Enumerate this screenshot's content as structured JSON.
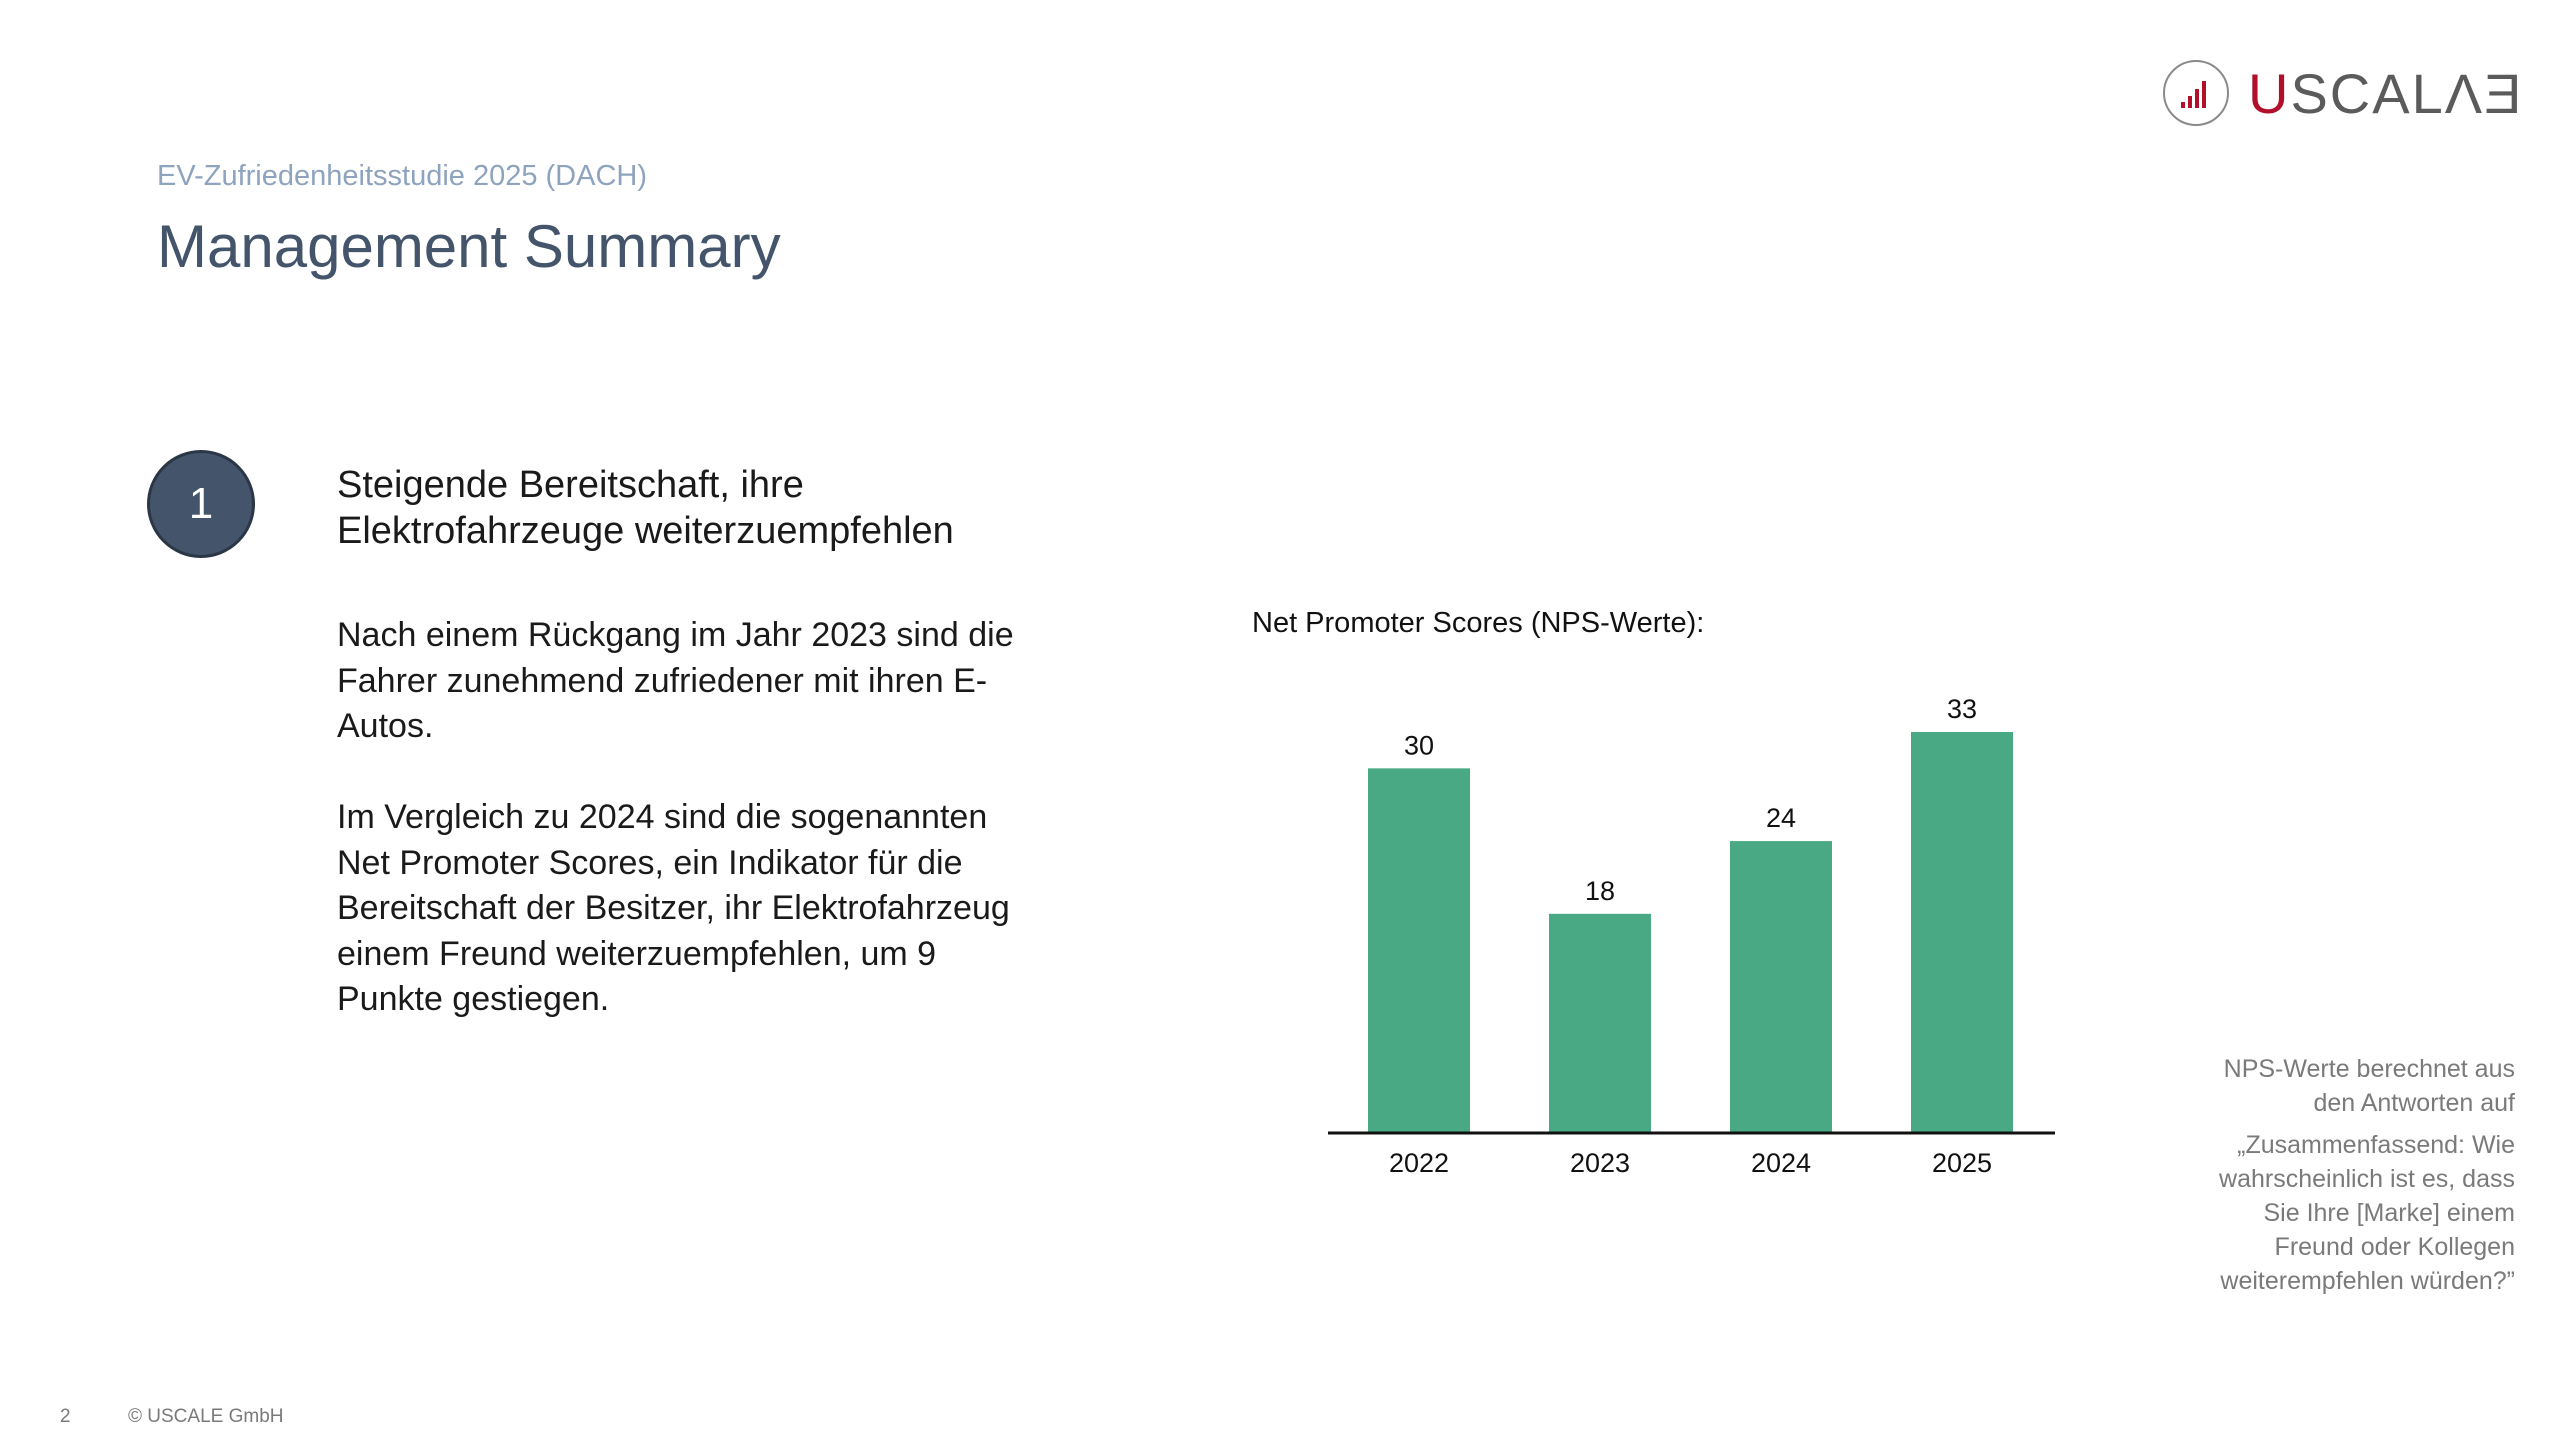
{
  "header": {
    "subtitle": "EV-Zufriedenheitsstudie 2025 (DACH)",
    "title": "Management Summary"
  },
  "logo": {
    "text_u": "U",
    "text_rest": "SCALΛƎ",
    "icon": "bar-chart-circle-icon",
    "brand_color": "#b0102a",
    "text_color": "#5b5b5b"
  },
  "section": {
    "number": "1",
    "headline": "Steigende Bereitschaft, ihre Elektrofahrzeuge weiterzuempfehlen",
    "paragraph1": "Nach einem Rückgang im Jahr 2023 sind die Fahrer zunehmend zufriedener mit ihren E-Autos.",
    "paragraph2": "Im Vergleich zu 2024 sind die sogenannten Net Promoter Scores, ein Indikator für die Bereitschaft der Besitzer, ihr Elektrofahrzeug einem Freund weiterzuempfehlen, um 9 Punkte gestiegen."
  },
  "chart_data": {
    "type": "bar",
    "title": "Net Promoter Scores (NPS-Werte):",
    "categories": [
      "2022",
      "2023",
      "2024",
      "2025"
    ],
    "values": [
      30,
      18,
      24,
      33
    ],
    "ylim": [
      0,
      33
    ],
    "bar_color": "#48a984",
    "data_labels": true,
    "grid": false
  },
  "side_note": {
    "line1": "NPS-Werte berechnet aus den Antworten auf",
    "line2": "„Zusammenfassend: Wie wahrscheinlich ist es, dass Sie Ihre [Marke] einem Freund oder Kollegen weiterempfehlen würden?”"
  },
  "footer": {
    "page": "2",
    "copyright": "© USCALE GmbH"
  }
}
